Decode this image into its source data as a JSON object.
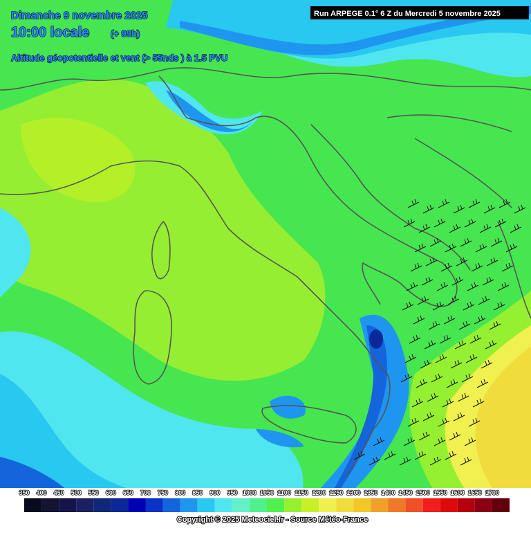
{
  "header": {
    "date": "Dimanche 9 novembre 2025",
    "time": "10:00 locale",
    "lead": "(+ 99h)",
    "field": "Altitude géopotentielle et vent (> 55nds ) à 1.5 PVU",
    "run": "Run ARPEGE 0.1° 6 Z du Mercredi 5 novembre 2025"
  },
  "legend": {
    "labels": [
      "350",
      "400",
      "450",
      "500",
      "550",
      "600",
      "650",
      "700",
      "750",
      "800",
      "850",
      "900",
      "950",
      "1000",
      "1050",
      "1100",
      "1150",
      "1200",
      "1250",
      "1300",
      "1350",
      "1400",
      "1450",
      "1500",
      "1550",
      "1600",
      "1650",
      "1700"
    ],
    "colors": [
      "#0a0a1e",
      "#141432",
      "#14144b",
      "#1a2060",
      "#10287a",
      "#0a2896",
      "#0000b4",
      "#0a32c8",
      "#1464dc",
      "#1e96f0",
      "#28c8f0",
      "#50e6f0",
      "#64f0c8",
      "#50f08c",
      "#50f050",
      "#96f032",
      "#c8f028",
      "#f0f050",
      "#f0dc3c",
      "#f0c828",
      "#f0a028",
      "#f07828",
      "#f05028",
      "#f01e1e",
      "#dc0a0a",
      "#b4000a",
      "#8c0014",
      "#64000a"
    ]
  },
  "footer": {
    "copyright": "Copyright © 2025 Meteociel.fr - Source Météo-France"
  }
}
